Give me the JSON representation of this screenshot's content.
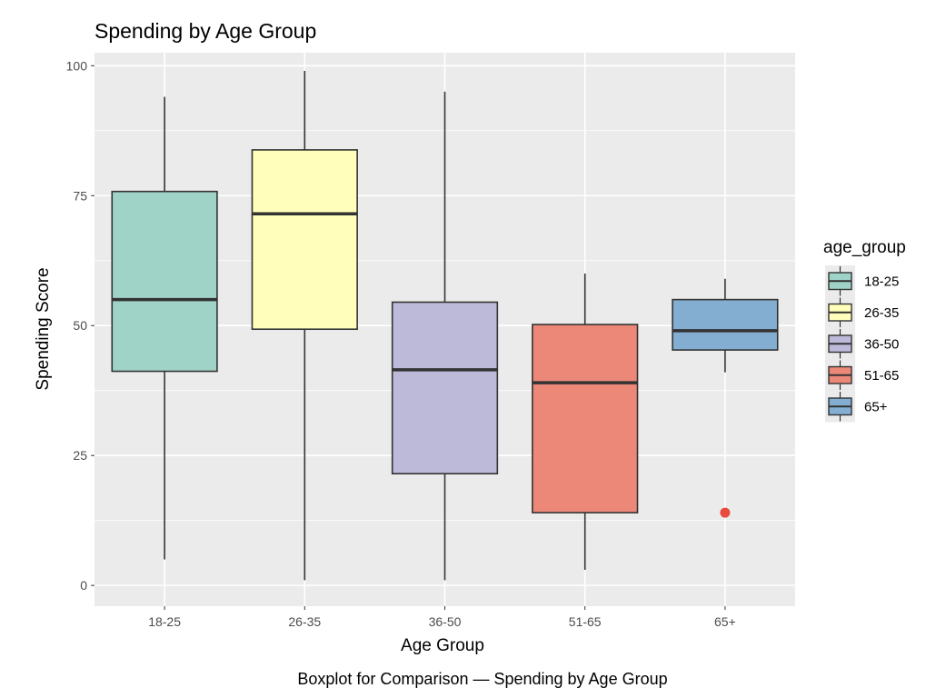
{
  "chart_data": {
    "type": "boxplot",
    "title": "Spending by Age Group",
    "xlabel": "Age Group",
    "ylabel": "Spending Score",
    "caption": "Boxplot for Comparison — Spending by Age Group",
    "ylim": [
      -4,
      102.5
    ],
    "y_ticks": [
      0,
      25,
      50,
      75,
      100
    ],
    "grid": true,
    "legend": {
      "title": "age_group",
      "position": "right"
    },
    "categories": [
      "18-25",
      "26-35",
      "36-50",
      "51-65",
      "65+"
    ],
    "boxes": [
      {
        "category": "18-25",
        "whisker_low": 5,
        "q1": 41.2,
        "median": 55,
        "q3": 75.8,
        "whisker_high": 94,
        "outliers": [],
        "color": "#9fd3c7"
      },
      {
        "category": "26-35",
        "whisker_low": 1,
        "q1": 49.3,
        "median": 71.5,
        "q3": 83.8,
        "whisker_high": 99,
        "outliers": [],
        "color": "#ffffbb"
      },
      {
        "category": "36-50",
        "whisker_low": 1,
        "q1": 21.5,
        "median": 41.5,
        "q3": 54.5,
        "whisker_high": 95,
        "outliers": [],
        "color": "#bdbad9"
      },
      {
        "category": "51-65",
        "whisker_low": 3,
        "q1": 14,
        "median": 39,
        "q3": 50.2,
        "whisker_high": 60,
        "outliers": [],
        "color": "#eb8878"
      },
      {
        "category": "65+",
        "whisker_low": 41,
        "q1": 45.3,
        "median": 49,
        "q3": 55,
        "whisker_high": 59,
        "outliers": [
          14
        ],
        "color": "#83aed1"
      }
    ],
    "outlier_color": "#e74c3c"
  }
}
